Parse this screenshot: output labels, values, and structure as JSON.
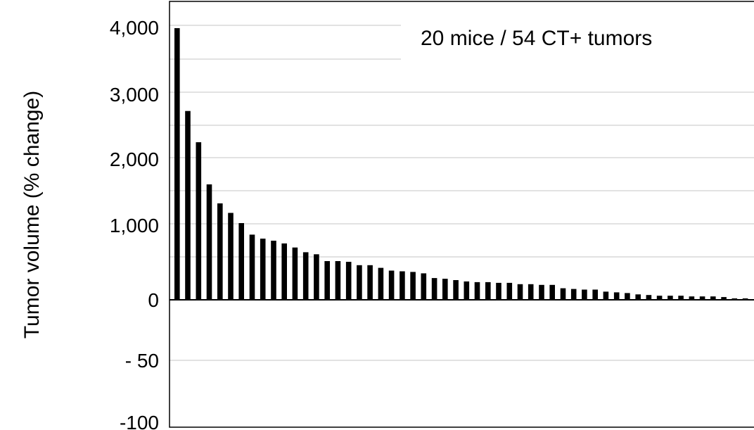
{
  "chart_data": {
    "type": "bar",
    "ylabel": "Tumor volume (% change)",
    "annotation": "20 mice / 54 CT+ tumors",
    "y_ticks": [
      "4,000",
      "3,000",
      "2,000",
      "1,000",
      "0",
      "- 50",
      "-100"
    ],
    "grid": true,
    "values": [
      4000,
      2780,
      2320,
      1700,
      1420,
      1280,
      1130,
      960,
      900,
      870,
      830,
      770,
      700,
      670,
      570,
      570,
      560,
      510,
      510,
      470,
      430,
      420,
      410,
      390,
      320,
      310,
      290,
      270,
      260,
      260,
      250,
      250,
      230,
      230,
      220,
      220,
      170,
      160,
      150,
      150,
      120,
      110,
      100,
      80,
      70,
      60,
      60,
      60,
      50,
      50,
      50,
      40,
      20,
      10
    ],
    "colors": {
      "bar": "#000000",
      "grid": "#d9d9d9",
      "axis": "#000000"
    }
  }
}
